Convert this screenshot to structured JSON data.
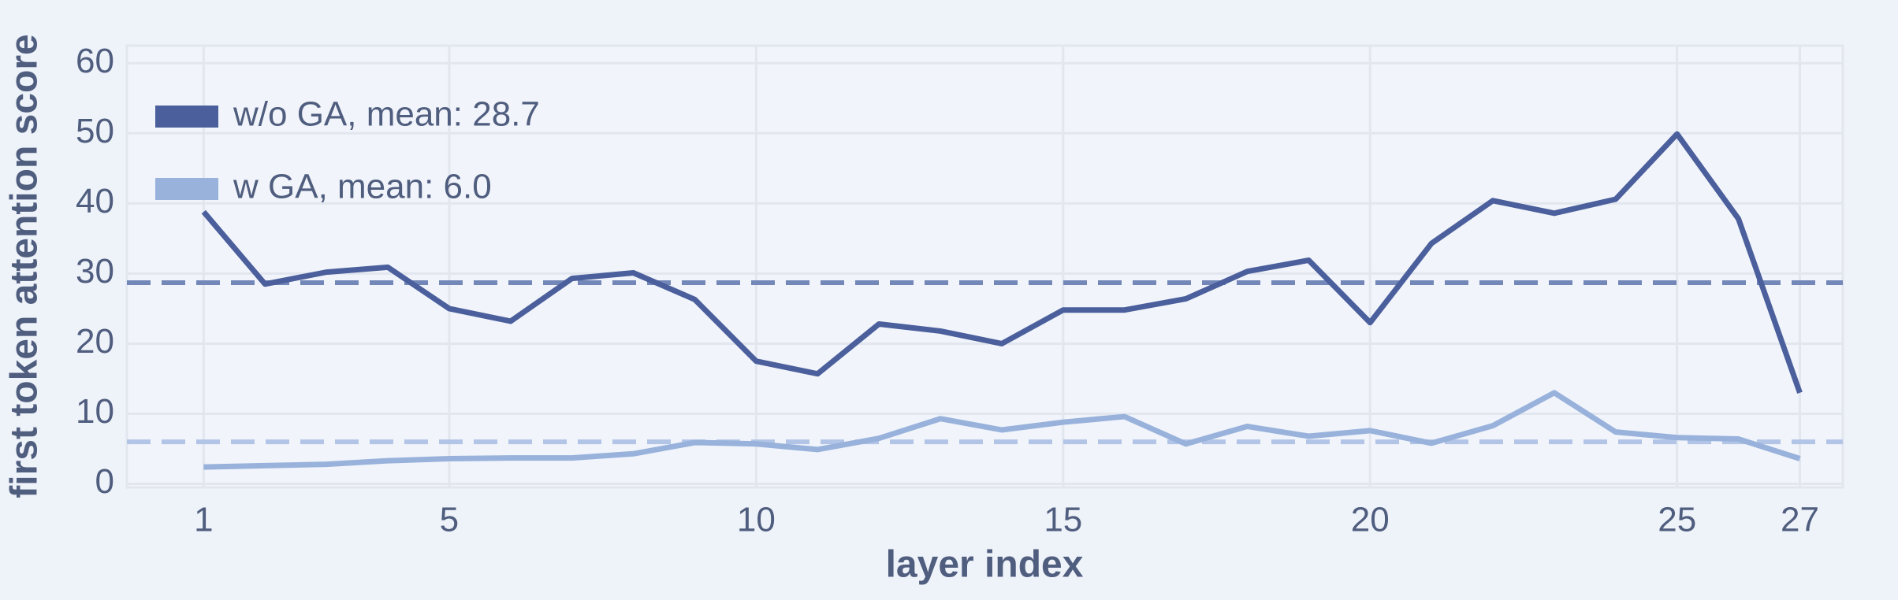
{
  "chart_data": {
    "type": "line",
    "x_label": "layer index",
    "y_label": "first token attention score",
    "x": [
      1,
      2,
      3,
      4,
      5,
      6,
      7,
      8,
      9,
      10,
      11,
      12,
      13,
      14,
      15,
      16,
      17,
      18,
      19,
      20,
      21,
      22,
      23,
      24,
      25,
      26,
      27
    ],
    "series": [
      {
        "name": "w/o GA, mean: 28.7",
        "color": "#4a5f9c",
        "mean_color": "#7388b8",
        "mean": 28.7,
        "values": [
          38.8,
          28.5,
          30.2,
          30.9,
          25,
          23.2,
          29.3,
          30.1,
          26.3,
          17.5,
          15.7,
          22.8,
          21.8,
          20,
          24.8,
          24.8,
          26.4,
          30.3,
          31.9,
          23,
          34.3,
          40.4,
          38.6,
          40.6,
          49.9,
          37.8,
          13
        ]
      },
      {
        "name": "w GA, mean: 6.0",
        "color": "#98b2dc",
        "mean_color": "#b2c5e6",
        "mean": 6.0,
        "values": [
          2.4,
          2.6,
          2.8,
          3.3,
          3.6,
          3.7,
          3.7,
          4.3,
          5.9,
          5.7,
          4.9,
          6.5,
          9.3,
          7.7,
          8.8,
          9.6,
          5.7,
          8.2,
          6.8,
          7.6,
          5.8,
          8.3,
          13,
          7.4,
          6.6,
          6.4,
          3.6
        ]
      }
    ],
    "xlim": [
      -0.25,
      27.7
    ],
    "ylim": [
      -0.5,
      62.5
    ],
    "xticks": [
      1,
      5,
      10,
      15,
      20,
      25,
      27
    ],
    "yticks": [
      0,
      10,
      20,
      30,
      40,
      50,
      60
    ],
    "grid": true,
    "legend": "upper left"
  }
}
